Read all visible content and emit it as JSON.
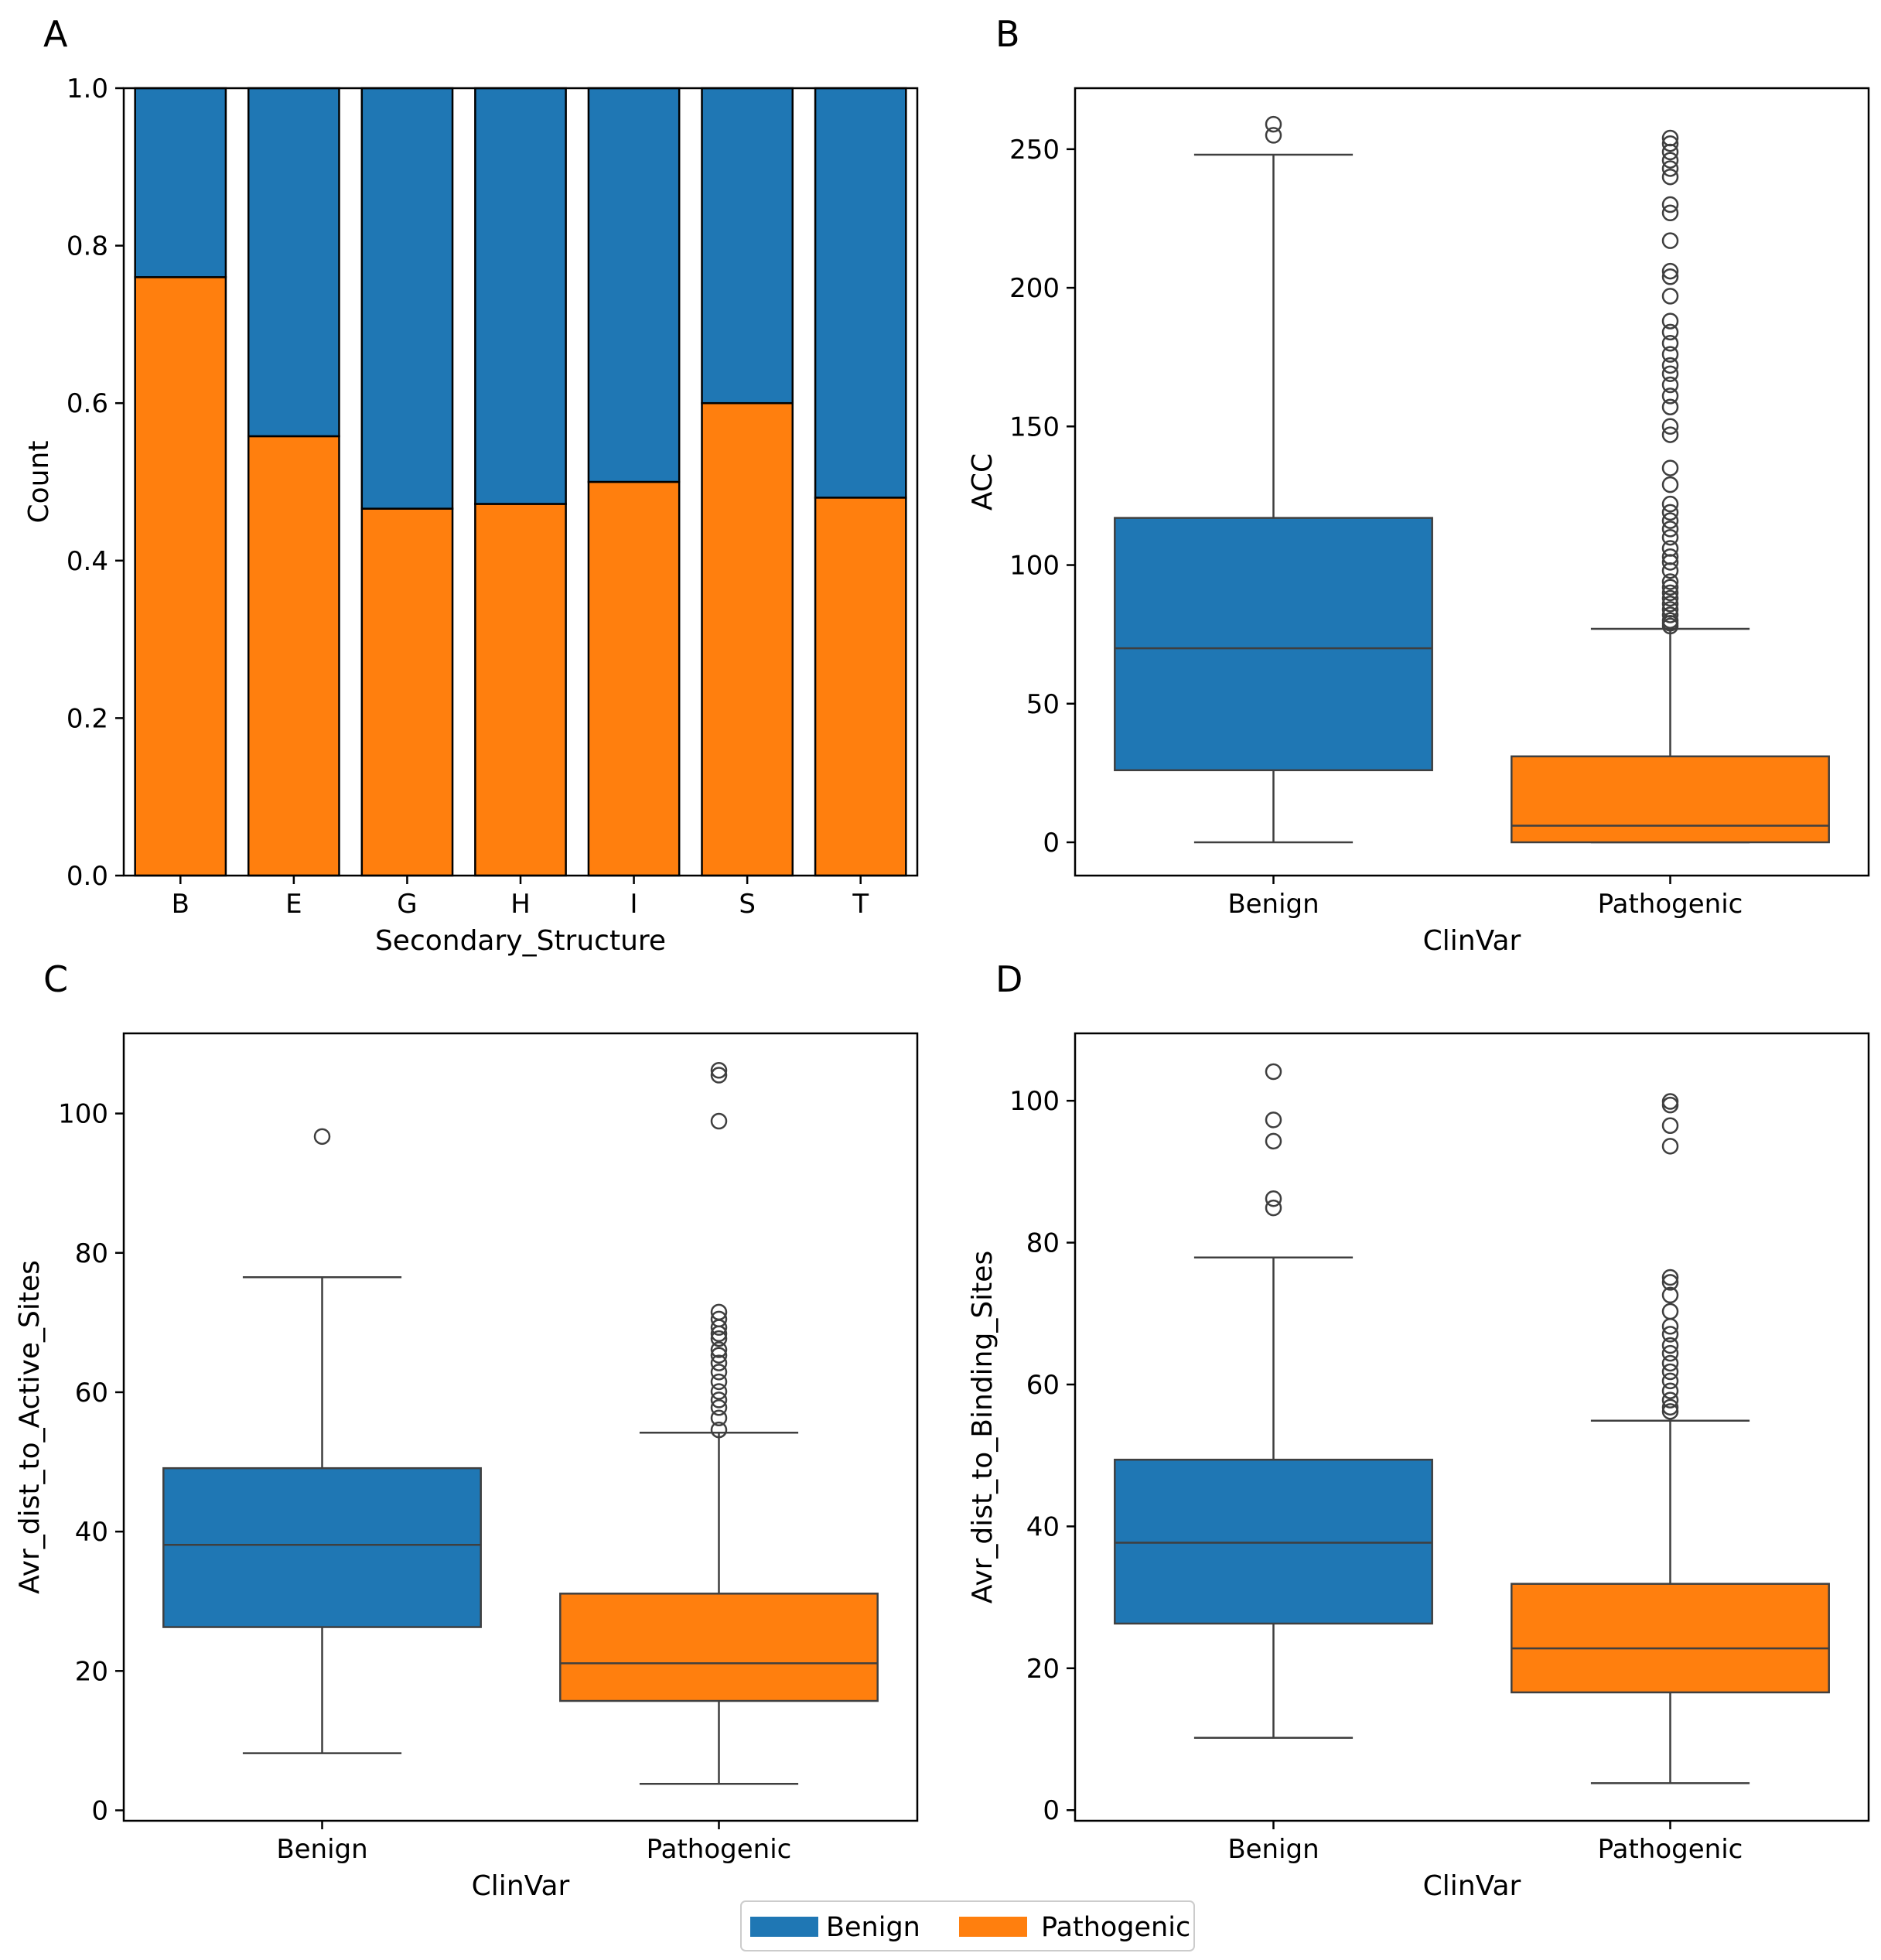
{
  "colors": {
    "benign": "#1f77b4",
    "pathogenic": "#ff7f0e",
    "line": "#3f3f3f"
  },
  "legend": {
    "entries": [
      {
        "label": "Benign",
        "color": "#1f77b4"
      },
      {
        "label": "Pathogenic",
        "color": "#ff7f0e"
      }
    ],
    "position": "bottom-center"
  },
  "chart_data": [
    {
      "panel": "A",
      "type": "bar",
      "stacked": true,
      "xlabel": "Secondary_Structure",
      "ylabel": "Count",
      "ylim": [
        0,
        1.0
      ],
      "yticks": [
        0.0,
        0.2,
        0.4,
        0.6,
        0.8,
        1.0
      ],
      "ytick_labels": [
        "0.0",
        "0.2",
        "0.4",
        "0.6",
        "0.8",
        "1.0"
      ],
      "categories": [
        "B",
        "E",
        "G",
        "H",
        "I",
        "S",
        "T"
      ],
      "series": [
        {
          "name": "Pathogenic",
          "values": [
            0.76,
            0.558,
            0.466,
            0.472,
            0.5,
            0.6,
            0.48
          ]
        },
        {
          "name": "Benign",
          "values": [
            0.24,
            0.442,
            0.534,
            0.528,
            0.5,
            0.4,
            0.52
          ]
        }
      ]
    },
    {
      "panel": "B",
      "type": "box",
      "xlabel": "ClinVar",
      "ylabel": "ACC",
      "ylim": [
        -12,
        272
      ],
      "yticks": [
        0,
        50,
        100,
        150,
        200,
        250
      ],
      "ytick_labels": [
        "0",
        "50",
        "100",
        "150",
        "200",
        "250"
      ],
      "categories": [
        "Benign",
        "Pathogenic"
      ],
      "boxes": [
        {
          "name": "Benign",
          "whisker_low": 0,
          "q1": 26,
          "median": 70,
          "q3": 117,
          "whisker_high": 248,
          "outliers": [
            255,
            259
          ]
        },
        {
          "name": "Pathogenic",
          "whisker_low": 0,
          "q1": 0,
          "median": 6,
          "q3": 31,
          "whisker_high": 77,
          "outliers": [
            78,
            79,
            80,
            82,
            84,
            86,
            88,
            90,
            92,
            94,
            98,
            101,
            103,
            106,
            110,
            113,
            116,
            119,
            122,
            129,
            135,
            147,
            150,
            157,
            161,
            165,
            169,
            172,
            176,
            180,
            184,
            188,
            197,
            204,
            206,
            217,
            227,
            230,
            240,
            243,
            246,
            249,
            252,
            254
          ]
        }
      ]
    },
    {
      "panel": "C",
      "type": "box",
      "xlabel": "ClinVar",
      "ylabel": "Avr_dist_to_Active_Sites",
      "ylim": [
        -1.5,
        111.5
      ],
      "yticks": [
        0,
        20,
        40,
        60,
        80,
        100
      ],
      "ytick_labels": [
        "0",
        "20",
        "40",
        "60",
        "80",
        "100"
      ],
      "categories": [
        "Benign",
        "Pathogenic"
      ],
      "boxes": [
        {
          "name": "Benign",
          "whisker_low": 8.2,
          "q1": 26.3,
          "median": 38.1,
          "q3": 49.1,
          "whisker_high": 76.5,
          "outliers": [
            96.7
          ]
        },
        {
          "name": "Pathogenic",
          "whisker_low": 3.8,
          "q1": 15.7,
          "median": 21.1,
          "q3": 31.1,
          "whisker_high": 54.2,
          "outliers": [
            54.6,
            56.3,
            57.8,
            58.9,
            60.1,
            61.5,
            62.9,
            64.2,
            65.3,
            66.1,
            67.7,
            68.4,
            69.3,
            70.5,
            71.5,
            98.9,
            105.5,
            106.2
          ]
        }
      ]
    },
    {
      "panel": "D",
      "type": "box",
      "xlabel": "ClinVar",
      "ylabel": "Avr_dist_to_Binding_Sites",
      "ylim": [
        -1.5,
        109.5
      ],
      "yticks": [
        0,
        20,
        40,
        60,
        80,
        100
      ],
      "ytick_labels": [
        "0",
        "20",
        "40",
        "60",
        "80",
        "100"
      ],
      "categories": [
        "Benign",
        "Pathogenic"
      ],
      "boxes": [
        {
          "name": "Benign",
          "whisker_low": 10.2,
          "q1": 26.3,
          "median": 37.7,
          "q3": 49.4,
          "whisker_high": 77.9,
          "outliers": [
            84.9,
            86.2,
            94.3,
            97.3,
            104.1
          ]
        },
        {
          "name": "Pathogenic",
          "whisker_low": 3.8,
          "q1": 16.6,
          "median": 22.8,
          "q3": 31.9,
          "whisker_high": 54.9,
          "outliers": [
            56.2,
            56.8,
            57.8,
            59.1,
            60.5,
            61.8,
            63.0,
            64.4,
            65.5,
            67.1,
            68.2,
            70.3,
            72.6,
            74.4,
            75.1,
            93.6,
            96.5,
            99.4,
            99.9
          ]
        }
      ]
    }
  ]
}
